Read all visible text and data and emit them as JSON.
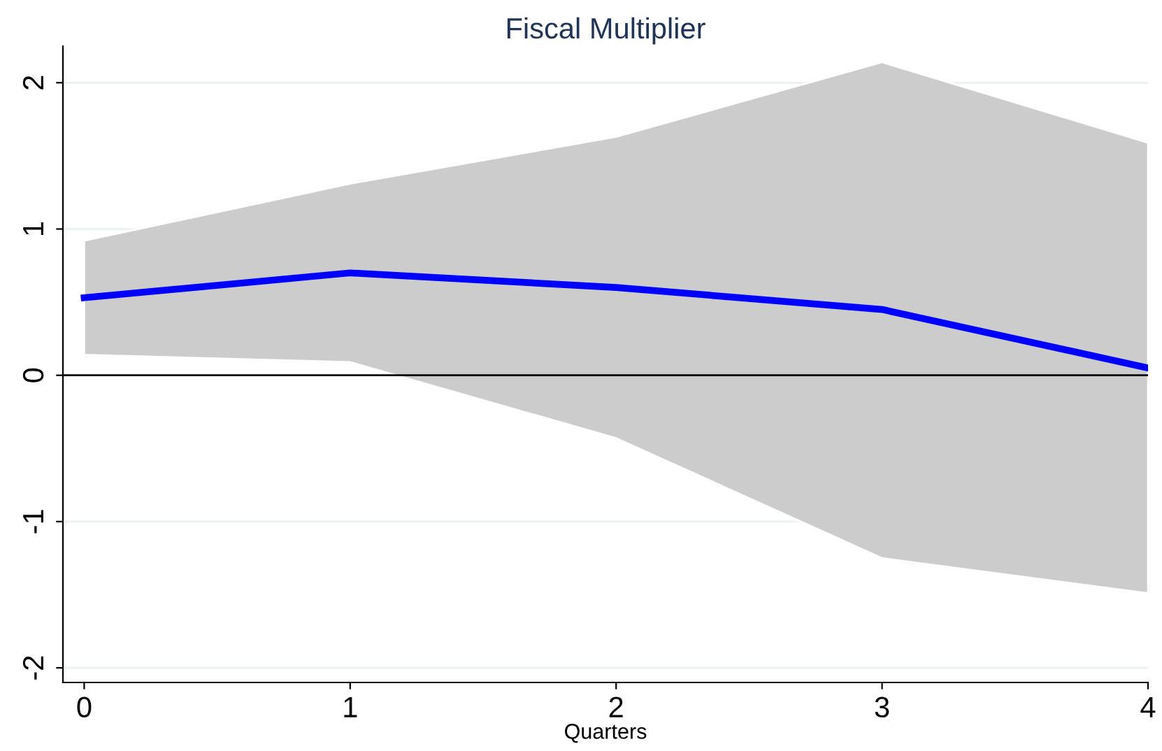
{
  "chart_data": {
    "type": "line",
    "title": "Fiscal Multiplier",
    "xlabel": "Quarters",
    "x": [
      0,
      1,
      2,
      3,
      4
    ],
    "series": [
      {
        "color": "#0000ff",
        "values": [
          0.53,
          0.7,
          0.6,
          0.45,
          0.05
        ],
        "lower": [
          0.14,
          0.09,
          -0.43,
          -1.25,
          -1.49
        ],
        "upper": [
          0.92,
          1.31,
          1.63,
          2.14,
          1.59
        ]
      }
    ],
    "xlim": [
      -0.08,
      4.0
    ],
    "xticks": [
      0,
      1,
      2,
      3,
      4
    ],
    "ylim": [
      -2.1,
      2.25
    ],
    "yticks": [
      -2,
      -1,
      0,
      1,
      2
    ],
    "grid": "y",
    "legend": false,
    "line_style": "solid",
    "marker": "none",
    "ref_lines": [
      {
        "axis": "y",
        "value": 0,
        "color": "#000000"
      }
    ]
  }
}
